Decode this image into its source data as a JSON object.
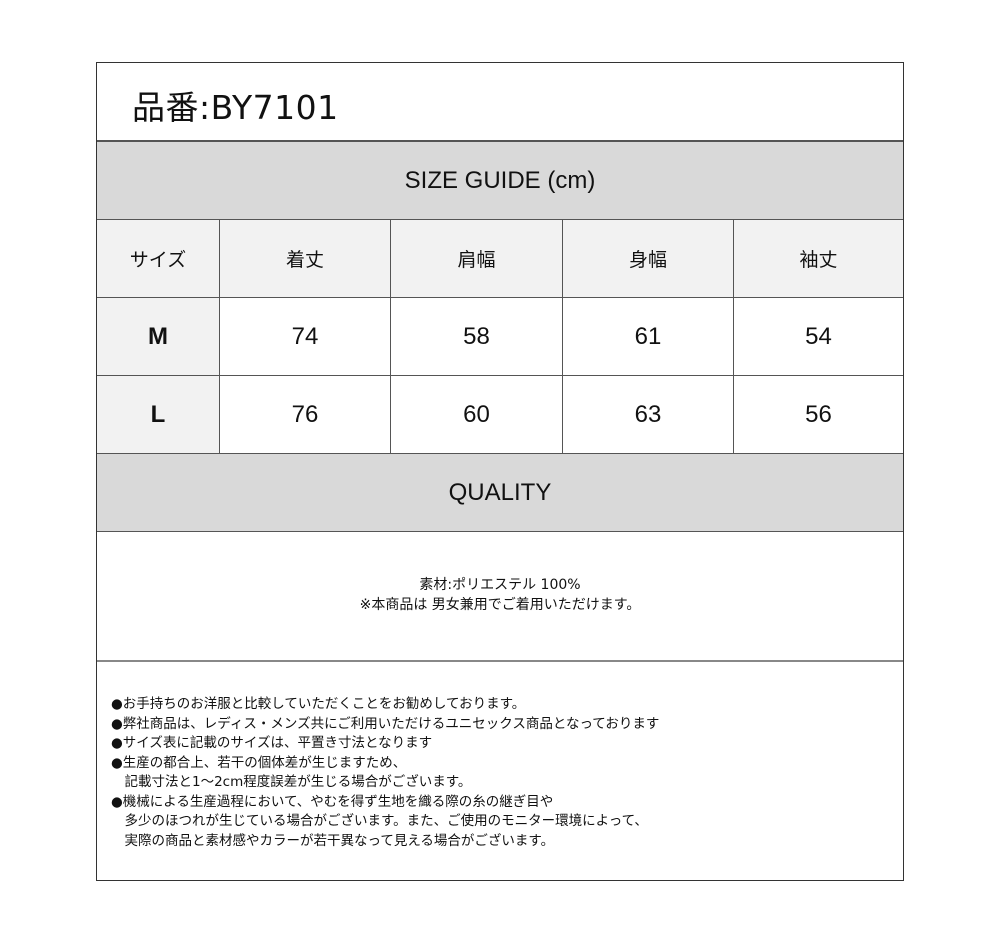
{
  "product": {
    "label": "品番:BY7101"
  },
  "size_guide": {
    "title": "SIZE GUIDE (cm)",
    "headers": [
      "サイズ",
      "着丈",
      "肩幅",
      "身幅",
      "袖丈"
    ],
    "rows": [
      [
        "M",
        "74",
        "58",
        "61",
        "54"
      ],
      [
        "L",
        "76",
        "60",
        "63",
        "56"
      ]
    ]
  },
  "quality": {
    "title": "QUALITY",
    "material": "素材:ポリエステル 100%",
    "note": "※本商品は 男女兼用でご着用いただけます。"
  },
  "notes": [
    "●お手持ちのお洋服と比較していただくことをお勧めしております。",
    "●弊社商品は、レディス・メンズ共にご利用いただけるユニセックス商品となっております",
    "●サイズ表に記載のサイズは、平置き寸法となります",
    "●生産の都合上、若干の個体差が生じますため、",
    "　記載寸法と1～2cm程度誤差が生じる場合がございます。",
    "●機械による生産過程において、やむを得ず生地を織る際の糸の継ぎ目や",
    "　多少のほつれが生じている場合がございます。また、ご使用のモニター環境によって、",
    "　実際の商品と素材感やカラーが若干異なって見える場合がございます。"
  ]
}
